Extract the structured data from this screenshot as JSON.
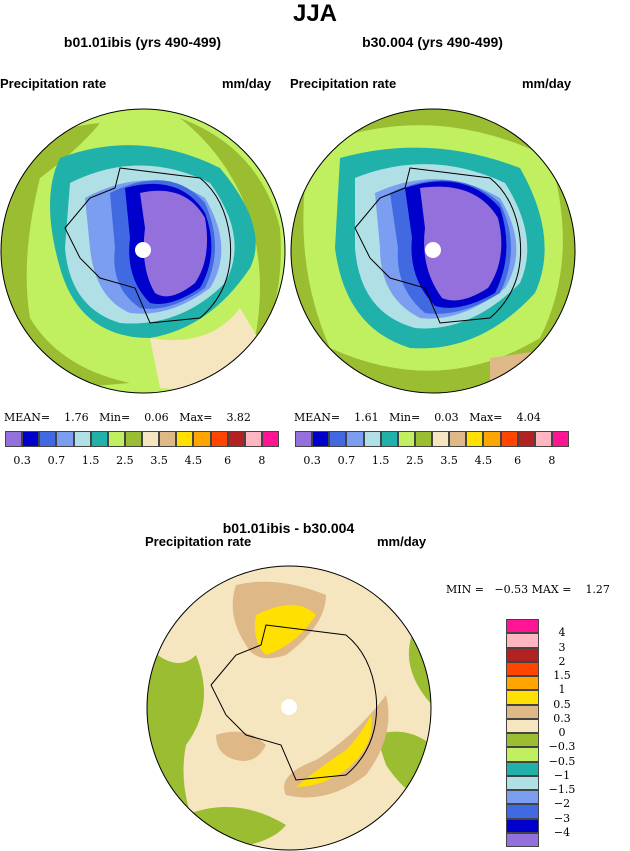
{
  "title": "JJA",
  "panels": [
    {
      "subtitle": "b01.01ibis (yrs 490-499)",
      "variable": "Precipitation rate",
      "units": "mm/day",
      "stats": {
        "mean_label": "MEAN=",
        "mean": "1.76",
        "min_label": "Min=",
        "min": "0.06",
        "max_label": "Max=",
        "max": "3.82"
      }
    },
    {
      "subtitle": "b30.004 (yrs 490-499)",
      "variable": "Precipitation rate",
      "units": "mm/day",
      "stats": {
        "mean_label": "MEAN=",
        "mean": "1.61",
        "min_label": "Min=",
        "min": "0.03",
        "max_label": "Max=",
        "max": "4.04"
      }
    }
  ],
  "diff": {
    "subtitle": "b01.01ibis - b30.004",
    "variable": "Precipitation rate",
    "units": "mm/day",
    "stats": {
      "min_label": "MIN =",
      "min": "−0.53",
      "max_label": "MAX =",
      "max": "1.27"
    }
  },
  "colorbar_abs": {
    "colors": [
      "#9370DB",
      "#0000CD",
      "#4169E1",
      "#7B9EF0",
      "#B0E0E6",
      "#20B2AA",
      "#C0F060",
      "#9ABD32",
      "#F5E6C0",
      "#DEB887",
      "#FFE000",
      "#FFA500",
      "#FF4500",
      "#B22222",
      "#FFB6C1",
      "#FF1493"
    ],
    "labels": [
      "0.3",
      "0.7",
      "1.5",
      "2.5",
      "3.5",
      "4.5",
      "6",
      "8"
    ]
  },
  "colorbar_diff": {
    "colors": [
      "#9370DB",
      "#0000CD",
      "#4169E1",
      "#7B9EF0",
      "#B0E0E6",
      "#20B2AA",
      "#C0F060",
      "#9ABD32",
      "#F5E6C0",
      "#DEB887",
      "#FFE000",
      "#FFA500",
      "#FF4500",
      "#B22222",
      "#FFB6C1",
      "#FF1493"
    ],
    "labels": [
      "−4",
      "−3",
      "−2",
      "−1.5",
      "−1",
      "−0.5",
      "−0.3",
      "0",
      "0.3",
      "0.5",
      "1",
      "1.5",
      "2",
      "3",
      "4"
    ]
  }
}
